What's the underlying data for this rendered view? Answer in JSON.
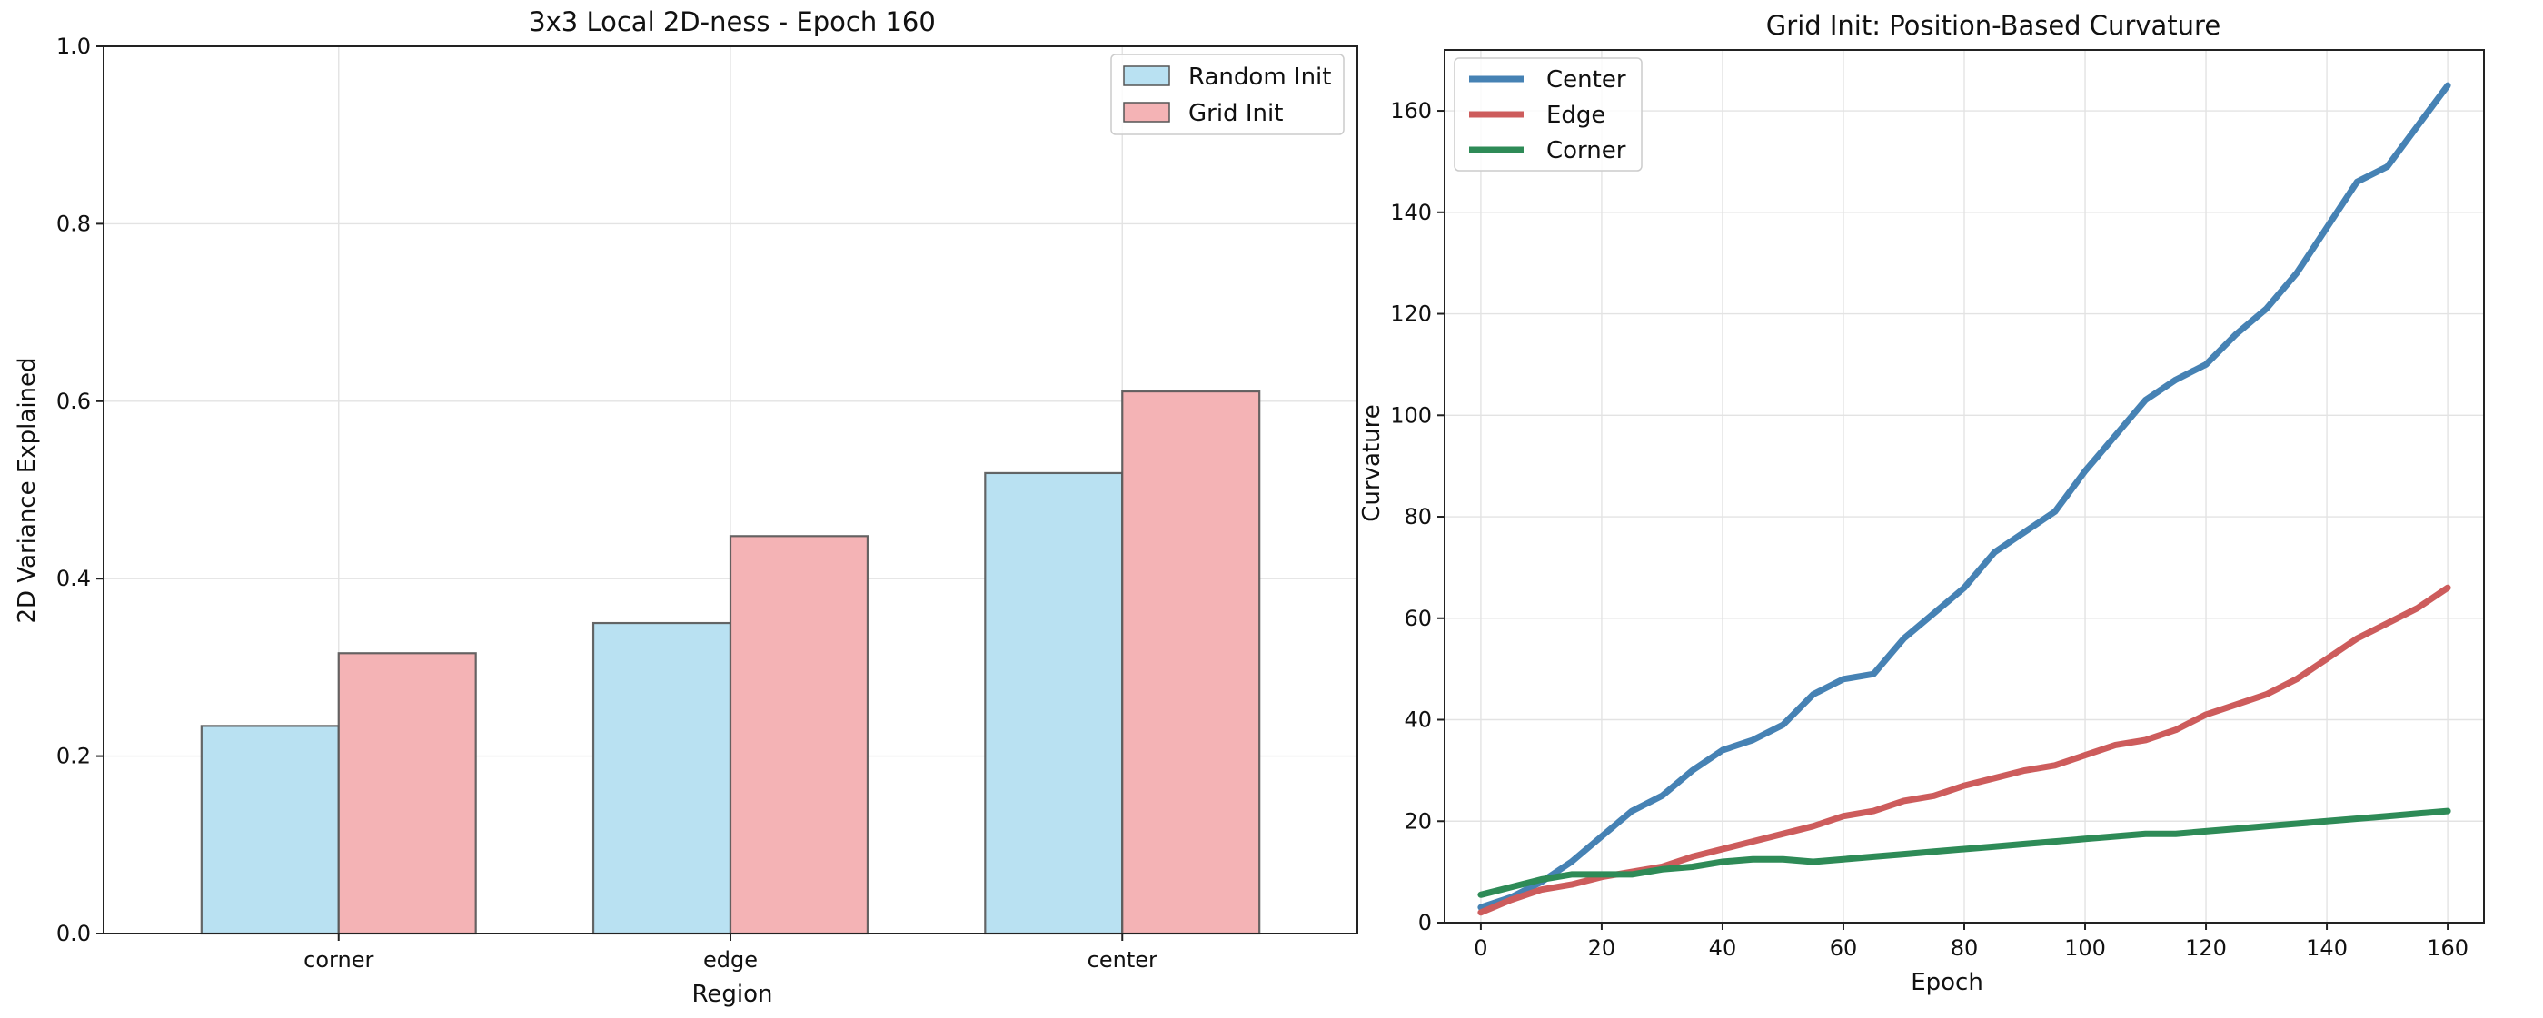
{
  "chart_data": [
    {
      "type": "bar",
      "title": "3x3 Local 2D-ness - Epoch 160",
      "xlabel": "Region",
      "ylabel": "2D Variance Explained",
      "categories": [
        "corner",
        "edge",
        "center"
      ],
      "ylim": [
        0,
        1
      ],
      "yticks": [
        0.0,
        0.2,
        0.4,
        0.6,
        0.8,
        1.0
      ],
      "ytick_labels": [
        "0.0",
        "0.2",
        "0.4",
        "0.6",
        "0.8",
        "1.0"
      ],
      "grid": true,
      "legend_position": "top-right",
      "series": [
        {
          "name": "Random Init",
          "color": "#b9e1f2",
          "values": [
            0.234,
            0.35,
            0.519
          ]
        },
        {
          "name": "Grid Init",
          "color": "#f4b3b5",
          "values": [
            0.316,
            0.448,
            0.611
          ]
        }
      ]
    },
    {
      "type": "line",
      "title": "Grid Init: Position-Based Curvature",
      "xlabel": "Epoch",
      "ylabel": "Curvature",
      "xlim": [
        -6,
        166
      ],
      "ylim": [
        0,
        172
      ],
      "xticks": [
        0,
        20,
        40,
        60,
        80,
        100,
        120,
        140,
        160
      ],
      "xtick_labels": [
        "0",
        "20",
        "40",
        "60",
        "80",
        "100",
        "120",
        "140",
        "160"
      ],
      "yticks": [
        0,
        20,
        40,
        60,
        80,
        100,
        120,
        140,
        160
      ],
      "ytick_labels": [
        "0",
        "20",
        "40",
        "60",
        "80",
        "100",
        "120",
        "140",
        "160"
      ],
      "grid": true,
      "legend_position": "top-left",
      "series": [
        {
          "name": "Center",
          "color": "#4682b4",
          "x": [
            0,
            5,
            10,
            15,
            20,
            25,
            30,
            35,
            40,
            45,
            50,
            55,
            60,
            65,
            70,
            75,
            80,
            85,
            90,
            95,
            100,
            105,
            110,
            115,
            120,
            125,
            130,
            135,
            140,
            145,
            150,
            155,
            160
          ],
          "y": [
            3,
            5,
            8,
            12,
            17,
            22,
            25,
            30,
            34,
            36,
            39,
            45,
            48,
            49,
            56,
            61,
            66,
            73,
            77,
            81,
            89,
            96,
            103,
            107,
            110,
            116,
            121,
            128,
            137,
            146,
            149,
            157,
            165
          ]
        },
        {
          "name": "Edge",
          "color": "#cd5c5c",
          "x": [
            0,
            5,
            10,
            15,
            20,
            25,
            30,
            35,
            40,
            45,
            50,
            55,
            60,
            65,
            70,
            75,
            80,
            85,
            90,
            95,
            100,
            105,
            110,
            115,
            120,
            125,
            130,
            135,
            140,
            145,
            150,
            155,
            160
          ],
          "y": [
            2,
            4.5,
            6.5,
            7.5,
            9,
            10,
            11,
            13,
            14.5,
            16,
            17.5,
            19,
            21,
            22,
            24,
            25,
            27,
            28.5,
            30,
            31,
            33,
            35,
            36,
            38,
            41,
            43,
            45,
            48,
            52,
            56,
            59,
            62,
            66
          ]
        },
        {
          "name": "Corner",
          "color": "#2e8b57",
          "x": [
            0,
            5,
            10,
            15,
            20,
            25,
            30,
            35,
            40,
            45,
            50,
            55,
            60,
            65,
            70,
            75,
            80,
            85,
            90,
            95,
            100,
            105,
            110,
            115,
            120,
            125,
            130,
            135,
            140,
            145,
            150,
            155,
            160
          ],
          "y": [
            5.5,
            7,
            8.5,
            9.5,
            9.5,
            9.5,
            10.5,
            11,
            12,
            12.5,
            12.5,
            12,
            12.5,
            13,
            13.5,
            14,
            14.5,
            15,
            15.5,
            16,
            16.5,
            17,
            17.5,
            17.5,
            18,
            18.5,
            19,
            19.5,
            20,
            20.5,
            21,
            21.5,
            22
          ]
        }
      ]
    }
  ]
}
